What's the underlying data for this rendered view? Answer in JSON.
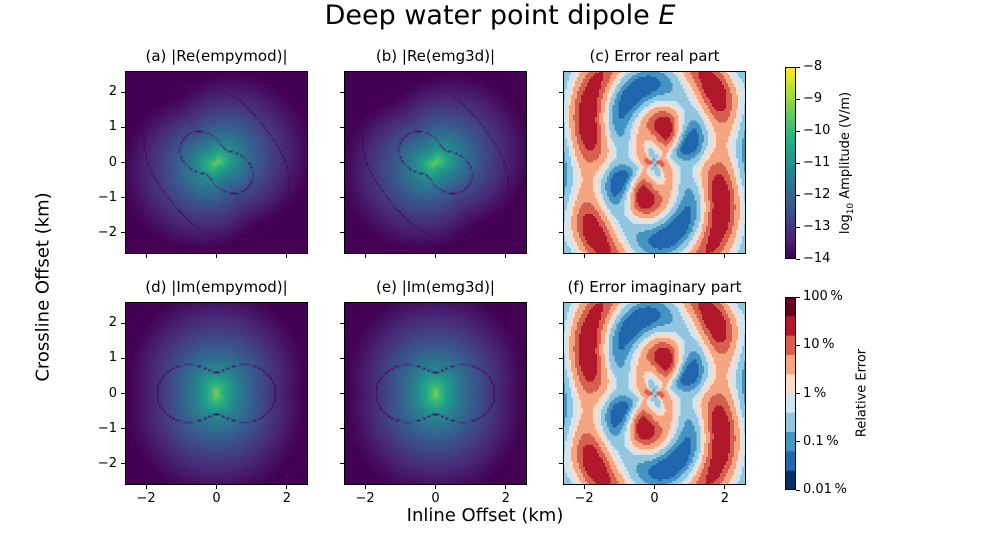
{
  "figure": {
    "title": "Deep water point dipole",
    "title_symbol": "E",
    "xlabel": "Inline Offset (km)",
    "ylabel": "Crossline Offset (km)"
  },
  "chart_data": [
    {
      "type": "heatmap",
      "title": "(a) |Re(empymod)|",
      "xlim": [
        -2.6,
        2.6
      ],
      "ylim": [
        -2.6,
        2.6
      ],
      "yticks": [
        "2",
        "1",
        "0",
        "−1",
        "−2"
      ],
      "colormap": "viridis",
      "field": "real"
    },
    {
      "type": "heatmap",
      "title": "(b) |Re(emg3d)|",
      "xlim": [
        -2.6,
        2.6
      ],
      "ylim": [
        -2.6,
        2.6
      ],
      "colormap": "viridis",
      "field": "real"
    },
    {
      "type": "heatmap",
      "title": "(c) Error real part",
      "xlim": [
        -2.6,
        2.6
      ],
      "ylim": [
        -2.6,
        2.6
      ],
      "colormap": "RdBu_r",
      "field": "error"
    },
    {
      "type": "heatmap",
      "title": "(d) |Im(empymod)|",
      "xlim": [
        -2.6,
        2.6
      ],
      "ylim": [
        -2.6,
        2.6
      ],
      "yticks": [
        "2",
        "1",
        "0",
        "−1",
        "−2"
      ],
      "xticks": [
        "−2",
        "0",
        "2"
      ],
      "colormap": "viridis",
      "field": "imag"
    },
    {
      "type": "heatmap",
      "title": "(e) |Im(emg3d)|",
      "xlim": [
        -2.6,
        2.6
      ],
      "ylim": [
        -2.6,
        2.6
      ],
      "xticks": [
        "−2",
        "0",
        "2"
      ],
      "colormap": "viridis",
      "field": "imag"
    },
    {
      "type": "heatmap",
      "title": "(f) Error imaginary part",
      "xlim": [
        -2.6,
        2.6
      ],
      "ylim": [
        -2.6,
        2.6
      ],
      "xticks": [
        "−2",
        "0",
        "2"
      ],
      "colormap": "RdBu_r",
      "field": "error"
    }
  ],
  "colorbars": [
    {
      "label_prefix": "log",
      "label_sub": "10",
      "label_suffix": " Amplitude (V/m)",
      "range": [
        -14,
        -8
      ],
      "ticks": [
        "−8",
        "−9",
        "−10",
        "−11",
        "−12",
        "−13",
        "−14"
      ],
      "colormap": "viridis"
    },
    {
      "label": "Relative Error",
      "scale": "log",
      "range": [
        0.01,
        100
      ],
      "ticks": [
        "100 %",
        "10 %",
        "1 %",
        "0.1 %",
        "0.01 %"
      ],
      "colors": [
        "#67001f",
        "#b2182b",
        "#d6604d",
        "#f4a582",
        "#fddbc7",
        "#d1e5f0",
        "#92c5de",
        "#4393c3",
        "#2166ac",
        "#053061"
      ]
    }
  ]
}
